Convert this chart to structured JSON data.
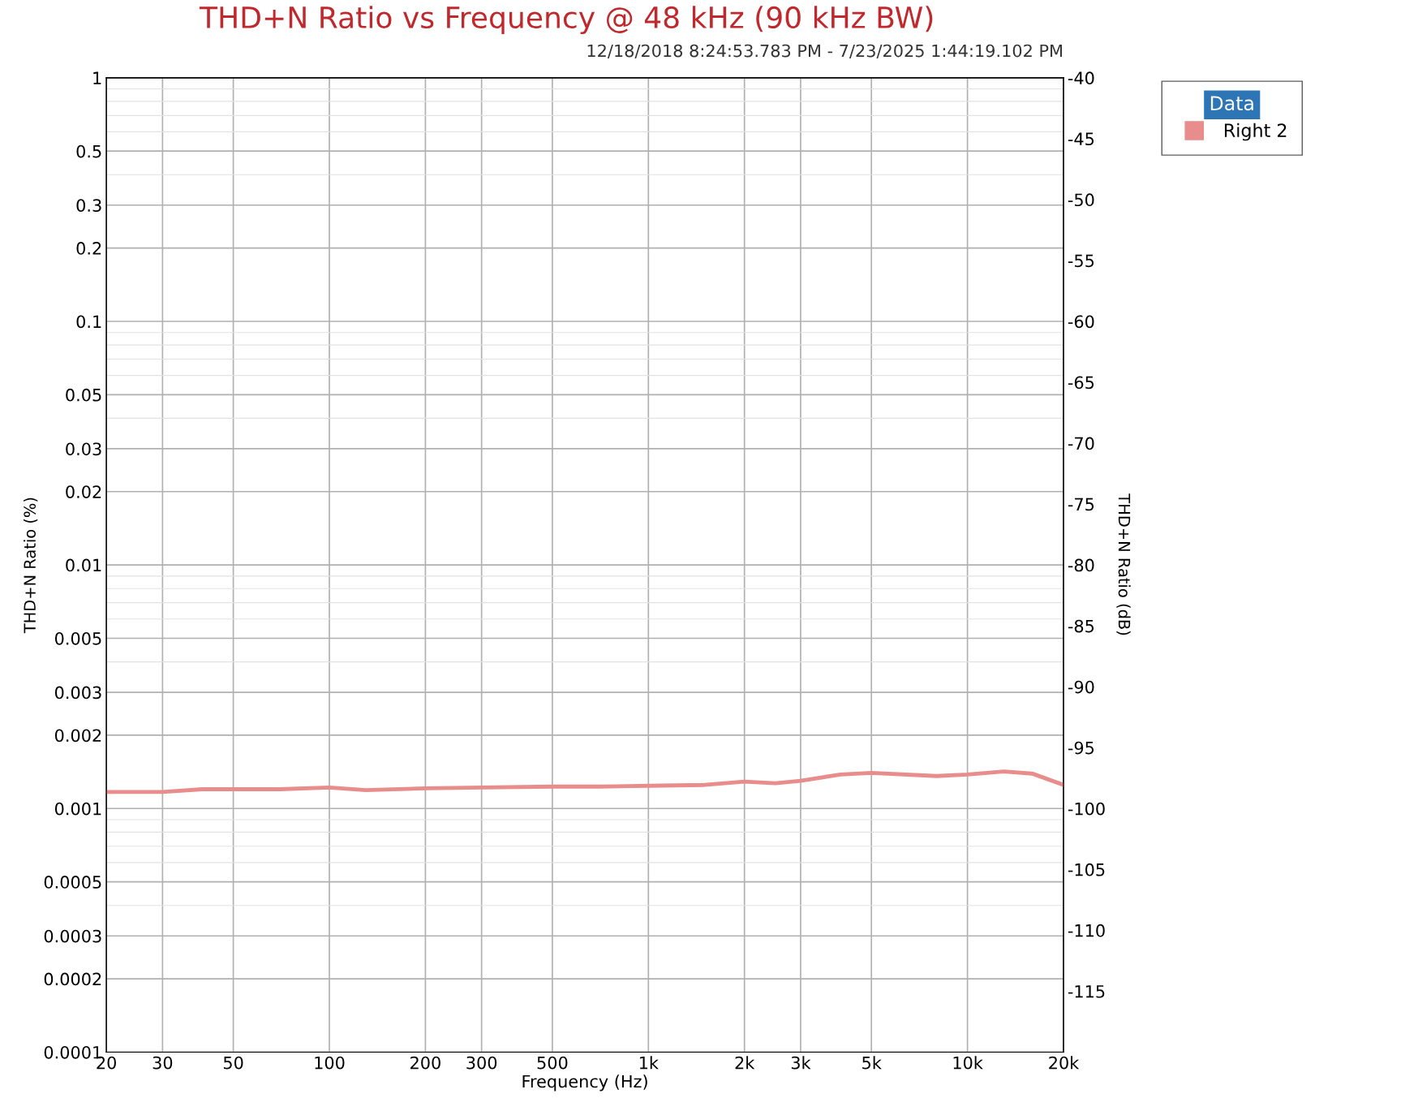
{
  "chart_data": {
    "type": "line",
    "title": "THD+N Ratio vs Frequency @ 48 kHz (90 kHz BW)",
    "subtitle": "12/18/2018 8:24:53.783 PM - 7/23/2025 1:44:19.102 PM",
    "xlabel": "Frequency (Hz)",
    "ylabel": "THD+N Ratio (%)",
    "y2label": "THD+N Ratio (dB)",
    "legend_title": "Data",
    "legend": "top right",
    "grid": true,
    "log": "xy",
    "line_style": "solid",
    "x": [
      20,
      30,
      40,
      70,
      100,
      130,
      200,
      300,
      500,
      700,
      1000,
      1500,
      2000,
      2500,
      3000,
      4000,
      5000,
      8000,
      10000,
      13000,
      16000,
      20000
    ],
    "series": [
      {
        "name": "Right 2",
        "color": "#e88c8c",
        "values": [
          0.00117,
          0.00117,
          0.0012,
          0.0012,
          0.00122,
          0.00119,
          0.00121,
          0.00122,
          0.00123,
          0.00123,
          0.00124,
          0.00125,
          0.00129,
          0.00127,
          0.0013,
          0.00138,
          0.0014,
          0.00136,
          0.00138,
          0.00142,
          0.00139,
          0.00125
        ]
      }
    ],
    "xlim": [
      20,
      20000
    ],
    "ylim": [
      0.0001,
      1
    ],
    "y2lim": [
      -120,
      -40
    ],
    "xticks": [
      20,
      30,
      50,
      100,
      200,
      300,
      500,
      {
        "value": 1000,
        "label": "1k"
      },
      {
        "value": 2000,
        "label": "2k"
      },
      {
        "value": 3000,
        "label": "3k"
      },
      {
        "value": 5000,
        "label": "5k"
      },
      {
        "value": 10000,
        "label": "10k"
      },
      {
        "value": 20000,
        "label": "20k"
      }
    ],
    "yticks": [
      1,
      0.5,
      0.3,
      0.2,
      0.1,
      0.05,
      0.03,
      0.02,
      0.01,
      0.005,
      0.003,
      0.002,
      0.001,
      0.0005,
      0.0003,
      0.0002,
      0.0001
    ],
    "y2ticks": [
      -40,
      -45,
      -50,
      -55,
      -60,
      -65,
      -70,
      -75,
      -80,
      -85,
      -90,
      -95,
      -100,
      -105,
      -110,
      -115
    ]
  }
}
